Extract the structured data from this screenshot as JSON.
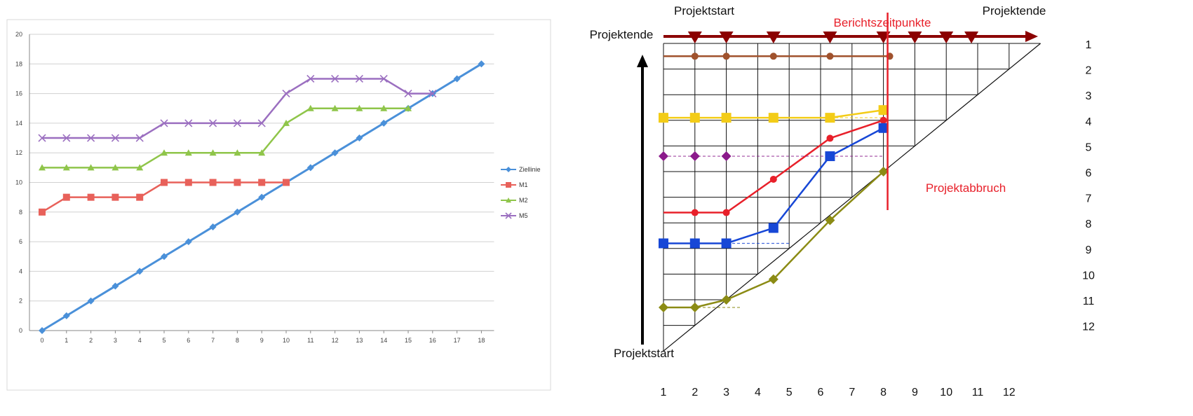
{
  "colors": {
    "ziellinie": "#4a90d9",
    "m1": "#e8615a",
    "m2": "#8fc54a",
    "m5": "#9b6fc0",
    "arrow": "#8b0000",
    "red": "#e8202a",
    "brown": "#a0522d",
    "yellow": "#f3cc17",
    "blue": "#1747d6",
    "olive": "#8b8b14",
    "purple": "#8b1a8b"
  },
  "chart_data": [
    {
      "type": "line",
      "title": "",
      "xlabel": "",
      "ylabel": "",
      "x": [
        0,
        1,
        2,
        3,
        4,
        5,
        6,
        7,
        8,
        9,
        10,
        11,
        12,
        13,
        14,
        15,
        16,
        17,
        18
      ],
      "ylim": [
        0,
        20
      ],
      "yticks": [
        0,
        2,
        4,
        6,
        8,
        10,
        12,
        14,
        16,
        18,
        20
      ],
      "grid": true,
      "legend_position": "right",
      "series": [
        {
          "name": "Ziellinie",
          "marker": "diamond",
          "x": [
            0,
            1,
            2,
            3,
            4,
            5,
            6,
            7,
            8,
            9,
            10,
            11,
            12,
            13,
            14,
            15,
            16,
            17,
            18
          ],
          "values": [
            0,
            1,
            2,
            3,
            4,
            5,
            6,
            7,
            8,
            9,
            10,
            11,
            12,
            13,
            14,
            15,
            16,
            17,
            18
          ]
        },
        {
          "name": "M1",
          "marker": "square",
          "x": [
            0,
            1,
            2,
            3,
            4,
            5,
            6,
            7,
            8,
            9,
            10
          ],
          "values": [
            8,
            9,
            9,
            9,
            9,
            10,
            10,
            10,
            10,
            10,
            10
          ]
        },
        {
          "name": "M2",
          "marker": "triangle",
          "x": [
            0,
            1,
            2,
            3,
            4,
            5,
            6,
            7,
            8,
            9,
            10,
            11,
            12,
            13,
            14,
            15
          ],
          "values": [
            11,
            11,
            11,
            11,
            11,
            12,
            12,
            12,
            12,
            12,
            14,
            15,
            15,
            15,
            15,
            15
          ]
        },
        {
          "name": "M5",
          "marker": "cross",
          "x": [
            0,
            1,
            2,
            3,
            4,
            5,
            6,
            7,
            8,
            9,
            10,
            11,
            12,
            13,
            14,
            15,
            16
          ],
          "values": [
            13,
            13,
            13,
            13,
            13,
            14,
            14,
            14,
            14,
            14,
            16,
            17,
            17,
            17,
            17,
            16,
            16
          ]
        }
      ]
    },
    {
      "type": "line",
      "title": "",
      "x_ticks": [
        "1",
        "2",
        "3",
        "4",
        "5",
        "6",
        "7",
        "8",
        "9",
        "10",
        "11",
        "12"
      ],
      "y_ticks_right": [
        "1",
        "2",
        "3",
        "4",
        "5",
        "6",
        "7",
        "8",
        "9",
        "10",
        "11",
        "12"
      ],
      "labels": {
        "top_left": "Projektstart",
        "top_right": "Projektende",
        "left_top": "Projektende",
        "bottom_left": "Projektstart",
        "report_points": "Berichtszeitpunkte",
        "abort": "Projektabbruch"
      },
      "report_times": [
        2,
        3,
        4.5,
        6.3,
        8,
        9,
        10,
        10.8
      ],
      "abort_at": 8.2,
      "series": [
        {
          "id": "brown",
          "marker": "circle",
          "points": [
            [
              2,
              1.5
            ],
            [
              3,
              1.5
            ],
            [
              4.5,
              1.5
            ],
            [
              6.3,
              1.5
            ],
            [
              8.2,
              1.5
            ]
          ],
          "baseline": 1.5,
          "base_x": [
            1,
            8.2
          ]
        },
        {
          "id": "yellow",
          "marker": "square",
          "points": [
            [
              1,
              3.9
            ],
            [
              2,
              3.9
            ],
            [
              3,
              3.9
            ],
            [
              4.5,
              3.9
            ],
            [
              6.3,
              3.9
            ],
            [
              8,
              3.6
            ]
          ],
          "baseline": 3.9,
          "base_x": [
            1,
            8
          ]
        },
        {
          "id": "red",
          "marker": "circle",
          "points": [
            [
              2,
              7.6
            ],
            [
              3,
              7.6
            ],
            [
              4.5,
              6.3
            ],
            [
              6.3,
              4.7
            ],
            [
              8,
              4.0
            ]
          ],
          "baseline": 7.6,
          "base_x": [
            1,
            3
          ]
        },
        {
          "id": "purple",
          "marker": "diamond",
          "points": [
            [
              1,
              5.4
            ],
            [
              2,
              5.4
            ],
            [
              3,
              5.4
            ]
          ],
          "baseline": 5.4,
          "base_x": [
            1,
            8
          ]
        },
        {
          "id": "blue",
          "marker": "square",
          "points": [
            [
              1,
              8.8
            ],
            [
              2,
              8.8
            ],
            [
              3,
              8.8
            ],
            [
              4.5,
              8.2
            ],
            [
              6.3,
              5.4
            ],
            [
              8,
              4.3
            ]
          ],
          "baseline": 8.8,
          "base_x": [
            1,
            5
          ]
        },
        {
          "id": "olive",
          "marker": "diamond",
          "points": [
            [
              1,
              11.3
            ],
            [
              2,
              11.3
            ],
            [
              3,
              11.0
            ],
            [
              4.5,
              10.2
            ],
            [
              6.3,
              7.9
            ],
            [
              8,
              6.0
            ]
          ],
          "baseline": 11.3,
          "base_x": [
            1,
            3.5
          ]
        }
      ]
    }
  ]
}
